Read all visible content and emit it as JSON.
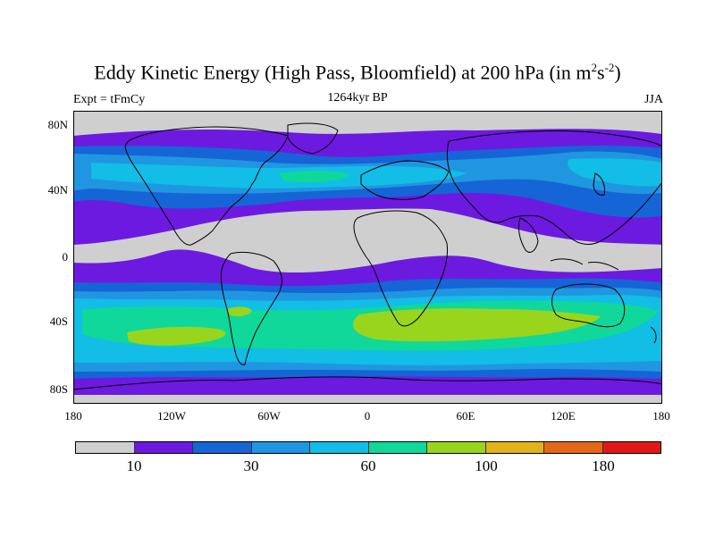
{
  "title": {
    "main": "Eddy Kinetic Energy (High Pass, Bloomfield) at 200 hPa (in m",
    "sup1": "2",
    "mid": "s",
    "sup2": "-2",
    "close": ")"
  },
  "subtitle": "1264kyr BP",
  "expt_label": "Expt = tFmCy",
  "season": "JJA",
  "axes": {
    "y_ticks": [
      "80N",
      "40N",
      "0",
      "40S",
      "80S"
    ],
    "x_ticks": [
      "180",
      "120W",
      "60W",
      "0",
      "60E",
      "120E",
      "180"
    ]
  },
  "colors": {
    "gray": "#cfcfcf",
    "violet": "#6d1ae0",
    "blue": "#1565d6",
    "mid_blue": "#2196e0",
    "cyan": "#12bde6",
    "teal": "#10d89a",
    "lime": "#99d51d",
    "gold": "#e1b21a",
    "orange": "#e5661a",
    "red": "#e31717"
  },
  "colorbar": {
    "swatches": [
      "#cfcfcf",
      "#6d1ae0",
      "#1565d6",
      "#2196e0",
      "#12bde6",
      "#10d89a",
      "#99d51d",
      "#e1b21a",
      "#e5661a",
      "#e31717"
    ],
    "labels": [
      "10",
      "30",
      "60",
      "100",
      "180"
    ]
  }
}
